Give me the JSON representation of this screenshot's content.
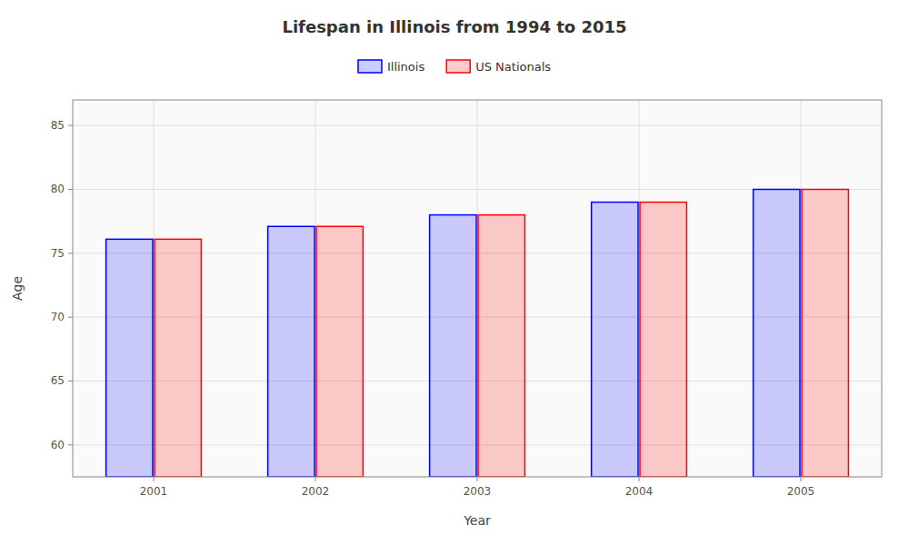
{
  "chart_data": {
    "type": "bar",
    "title": "Lifespan in Illinois from 1994 to 2015",
    "x_label": "Year",
    "y_label": "Age",
    "categories": [
      "2001",
      "2002",
      "2003",
      "2004",
      "2005"
    ],
    "series": [
      {
        "name": "Illinois",
        "color": "#0000ff",
        "values": [
          76.1,
          77.1,
          78.0,
          79.0,
          80.0
        ]
      },
      {
        "name": "US Nationals",
        "color": "#ff0000",
        "values": [
          76.1,
          77.1,
          78.0,
          79.0,
          80.0
        ]
      }
    ],
    "ylim": [
      57.5,
      87
    ],
    "yticks": [
      60,
      65,
      70,
      75,
      80,
      85
    ],
    "grid": true,
    "legend": "top"
  }
}
